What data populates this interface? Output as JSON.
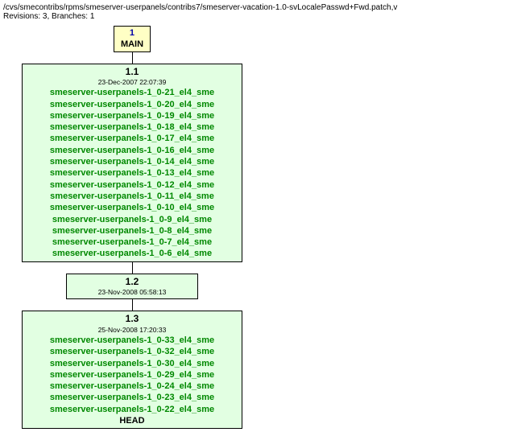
{
  "header": {
    "path": "/cvs/smecontribs/rpms/smeserver-userpanels/contribs7/smeserver-vacation-1.0-svLocalePasswd+Fwd.patch,v",
    "meta": "Revisions: 3, Branches: 1"
  },
  "branch": {
    "number": "1",
    "name": "MAIN",
    "bg_color": "#ffffc5",
    "number_color": "#0000aa"
  },
  "nodes": [
    {
      "rev": "1.1",
      "date": "23-Dec-2007 22:07:39",
      "tags": [
        "smeserver-userpanels-1_0-21_el4_sme",
        "smeserver-userpanels-1_0-20_el4_sme",
        "smeserver-userpanels-1_0-19_el4_sme",
        "smeserver-userpanels-1_0-18_el4_sme",
        "smeserver-userpanels-1_0-17_el4_sme",
        "smeserver-userpanels-1_0-16_el4_sme",
        "smeserver-userpanels-1_0-14_el4_sme",
        "smeserver-userpanels-1_0-13_el4_sme",
        "smeserver-userpanels-1_0-12_el4_sme",
        "smeserver-userpanels-1_0-11_el4_sme",
        "smeserver-userpanels-1_0-10_el4_sme",
        "smeserver-userpanels-1_0-9_el4_sme",
        "smeserver-userpanels-1_0-8_el4_sme",
        "smeserver-userpanels-1_0-7_el4_sme",
        "smeserver-userpanels-1_0-6_el4_sme"
      ],
      "head": false
    },
    {
      "rev": "1.2",
      "date": "23-Nov-2008 05:58:13",
      "tags": [],
      "head": false
    },
    {
      "rev": "1.3",
      "date": "25-Nov-2008 17:20:33",
      "tags": [
        "smeserver-userpanels-1_0-33_el4_sme",
        "smeserver-userpanels-1_0-32_el4_sme",
        "smeserver-userpanels-1_0-30_el4_sme",
        "smeserver-userpanels-1_0-29_el4_sme",
        "smeserver-userpanels-1_0-24_el4_sme",
        "smeserver-userpanels-1_0-23_el4_sme",
        "smeserver-userpanels-1_0-22_el4_sme"
      ],
      "head": true
    }
  ],
  "style": {
    "node_bg": "#e2ffe2",
    "tag_color": "#008800",
    "head_label": "HEAD"
  }
}
